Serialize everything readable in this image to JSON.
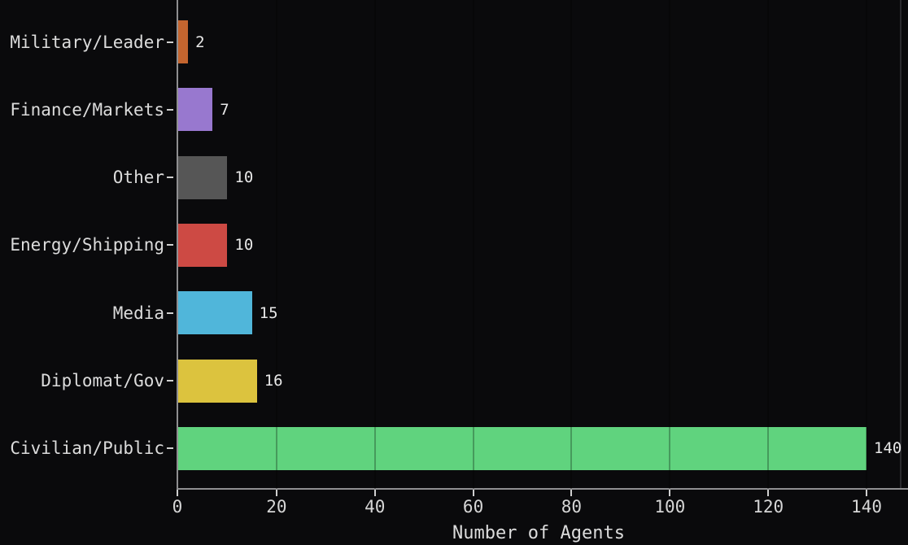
{
  "chart_data": {
    "type": "bar",
    "orientation": "horizontal",
    "xlabel": "Number of Agents",
    "categories": [
      "Military/Leader",
      "Finance/Markets",
      "Other",
      "Energy/Shipping",
      "Media",
      "Diplomat/Gov",
      "Civilian/Public"
    ],
    "values": [
      2,
      7,
      10,
      10,
      15,
      16,
      140
    ],
    "value_labels": [
      "2",
      "7",
      "10",
      "10",
      "15",
      "16",
      "140"
    ],
    "bar_colors": [
      "#c4652f",
      "#9878cf",
      "#565656",
      "#cd4a44",
      "#50b6da",
      "#dcc33e",
      "#60d37e"
    ],
    "x_ticks": [
      0,
      20,
      40,
      60,
      80,
      100,
      120,
      140
    ],
    "xlim": [
      0,
      147
    ],
    "grid": "vertical-overlay",
    "legend_position": "none",
    "background_color": "#0a0a0c",
    "text_color": "#dcdcdc"
  }
}
